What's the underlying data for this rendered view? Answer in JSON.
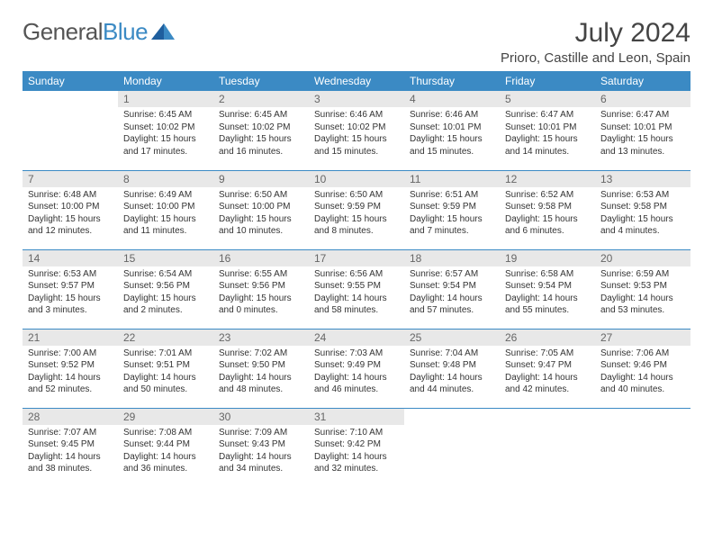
{
  "logo": {
    "text1": "General",
    "text2": "Blue"
  },
  "title": "July 2024",
  "location": "Prioro, Castille and Leon, Spain",
  "weekdays": [
    "Sunday",
    "Monday",
    "Tuesday",
    "Wednesday",
    "Thursday",
    "Friday",
    "Saturday"
  ],
  "colors": {
    "header_bg": "#3b8ac4",
    "header_text": "#ffffff",
    "daynum_bg": "#e8e8e8",
    "row_divider": "#3b8ac4",
    "page_bg": "#ffffff",
    "text": "#333333"
  },
  "weeks": [
    [
      null,
      {
        "n": "1",
        "sunrise": "Sunrise: 6:45 AM",
        "sunset": "Sunset: 10:02 PM",
        "day1": "Daylight: 15 hours",
        "day2": "and 17 minutes."
      },
      {
        "n": "2",
        "sunrise": "Sunrise: 6:45 AM",
        "sunset": "Sunset: 10:02 PM",
        "day1": "Daylight: 15 hours",
        "day2": "and 16 minutes."
      },
      {
        "n": "3",
        "sunrise": "Sunrise: 6:46 AM",
        "sunset": "Sunset: 10:02 PM",
        "day1": "Daylight: 15 hours",
        "day2": "and 15 minutes."
      },
      {
        "n": "4",
        "sunrise": "Sunrise: 6:46 AM",
        "sunset": "Sunset: 10:01 PM",
        "day1": "Daylight: 15 hours",
        "day2": "and 15 minutes."
      },
      {
        "n": "5",
        "sunrise": "Sunrise: 6:47 AM",
        "sunset": "Sunset: 10:01 PM",
        "day1": "Daylight: 15 hours",
        "day2": "and 14 minutes."
      },
      {
        "n": "6",
        "sunrise": "Sunrise: 6:47 AM",
        "sunset": "Sunset: 10:01 PM",
        "day1": "Daylight: 15 hours",
        "day2": "and 13 minutes."
      }
    ],
    [
      {
        "n": "7",
        "sunrise": "Sunrise: 6:48 AM",
        "sunset": "Sunset: 10:00 PM",
        "day1": "Daylight: 15 hours",
        "day2": "and 12 minutes."
      },
      {
        "n": "8",
        "sunrise": "Sunrise: 6:49 AM",
        "sunset": "Sunset: 10:00 PM",
        "day1": "Daylight: 15 hours",
        "day2": "and 11 minutes."
      },
      {
        "n": "9",
        "sunrise": "Sunrise: 6:50 AM",
        "sunset": "Sunset: 10:00 PM",
        "day1": "Daylight: 15 hours",
        "day2": "and 10 minutes."
      },
      {
        "n": "10",
        "sunrise": "Sunrise: 6:50 AM",
        "sunset": "Sunset: 9:59 PM",
        "day1": "Daylight: 15 hours",
        "day2": "and 8 minutes."
      },
      {
        "n": "11",
        "sunrise": "Sunrise: 6:51 AM",
        "sunset": "Sunset: 9:59 PM",
        "day1": "Daylight: 15 hours",
        "day2": "and 7 minutes."
      },
      {
        "n": "12",
        "sunrise": "Sunrise: 6:52 AM",
        "sunset": "Sunset: 9:58 PM",
        "day1": "Daylight: 15 hours",
        "day2": "and 6 minutes."
      },
      {
        "n": "13",
        "sunrise": "Sunrise: 6:53 AM",
        "sunset": "Sunset: 9:58 PM",
        "day1": "Daylight: 15 hours",
        "day2": "and 4 minutes."
      }
    ],
    [
      {
        "n": "14",
        "sunrise": "Sunrise: 6:53 AM",
        "sunset": "Sunset: 9:57 PM",
        "day1": "Daylight: 15 hours",
        "day2": "and 3 minutes."
      },
      {
        "n": "15",
        "sunrise": "Sunrise: 6:54 AM",
        "sunset": "Sunset: 9:56 PM",
        "day1": "Daylight: 15 hours",
        "day2": "and 2 minutes."
      },
      {
        "n": "16",
        "sunrise": "Sunrise: 6:55 AM",
        "sunset": "Sunset: 9:56 PM",
        "day1": "Daylight: 15 hours",
        "day2": "and 0 minutes."
      },
      {
        "n": "17",
        "sunrise": "Sunrise: 6:56 AM",
        "sunset": "Sunset: 9:55 PM",
        "day1": "Daylight: 14 hours",
        "day2": "and 58 minutes."
      },
      {
        "n": "18",
        "sunrise": "Sunrise: 6:57 AM",
        "sunset": "Sunset: 9:54 PM",
        "day1": "Daylight: 14 hours",
        "day2": "and 57 minutes."
      },
      {
        "n": "19",
        "sunrise": "Sunrise: 6:58 AM",
        "sunset": "Sunset: 9:54 PM",
        "day1": "Daylight: 14 hours",
        "day2": "and 55 minutes."
      },
      {
        "n": "20",
        "sunrise": "Sunrise: 6:59 AM",
        "sunset": "Sunset: 9:53 PM",
        "day1": "Daylight: 14 hours",
        "day2": "and 53 minutes."
      }
    ],
    [
      {
        "n": "21",
        "sunrise": "Sunrise: 7:00 AM",
        "sunset": "Sunset: 9:52 PM",
        "day1": "Daylight: 14 hours",
        "day2": "and 52 minutes."
      },
      {
        "n": "22",
        "sunrise": "Sunrise: 7:01 AM",
        "sunset": "Sunset: 9:51 PM",
        "day1": "Daylight: 14 hours",
        "day2": "and 50 minutes."
      },
      {
        "n": "23",
        "sunrise": "Sunrise: 7:02 AM",
        "sunset": "Sunset: 9:50 PM",
        "day1": "Daylight: 14 hours",
        "day2": "and 48 minutes."
      },
      {
        "n": "24",
        "sunrise": "Sunrise: 7:03 AM",
        "sunset": "Sunset: 9:49 PM",
        "day1": "Daylight: 14 hours",
        "day2": "and 46 minutes."
      },
      {
        "n": "25",
        "sunrise": "Sunrise: 7:04 AM",
        "sunset": "Sunset: 9:48 PM",
        "day1": "Daylight: 14 hours",
        "day2": "and 44 minutes."
      },
      {
        "n": "26",
        "sunrise": "Sunrise: 7:05 AM",
        "sunset": "Sunset: 9:47 PM",
        "day1": "Daylight: 14 hours",
        "day2": "and 42 minutes."
      },
      {
        "n": "27",
        "sunrise": "Sunrise: 7:06 AM",
        "sunset": "Sunset: 9:46 PM",
        "day1": "Daylight: 14 hours",
        "day2": "and 40 minutes."
      }
    ],
    [
      {
        "n": "28",
        "sunrise": "Sunrise: 7:07 AM",
        "sunset": "Sunset: 9:45 PM",
        "day1": "Daylight: 14 hours",
        "day2": "and 38 minutes."
      },
      {
        "n": "29",
        "sunrise": "Sunrise: 7:08 AM",
        "sunset": "Sunset: 9:44 PM",
        "day1": "Daylight: 14 hours",
        "day2": "and 36 minutes."
      },
      {
        "n": "30",
        "sunrise": "Sunrise: 7:09 AM",
        "sunset": "Sunset: 9:43 PM",
        "day1": "Daylight: 14 hours",
        "day2": "and 34 minutes."
      },
      {
        "n": "31",
        "sunrise": "Sunrise: 7:10 AM",
        "sunset": "Sunset: 9:42 PM",
        "day1": "Daylight: 14 hours",
        "day2": "and 32 minutes."
      },
      null,
      null,
      null
    ]
  ]
}
